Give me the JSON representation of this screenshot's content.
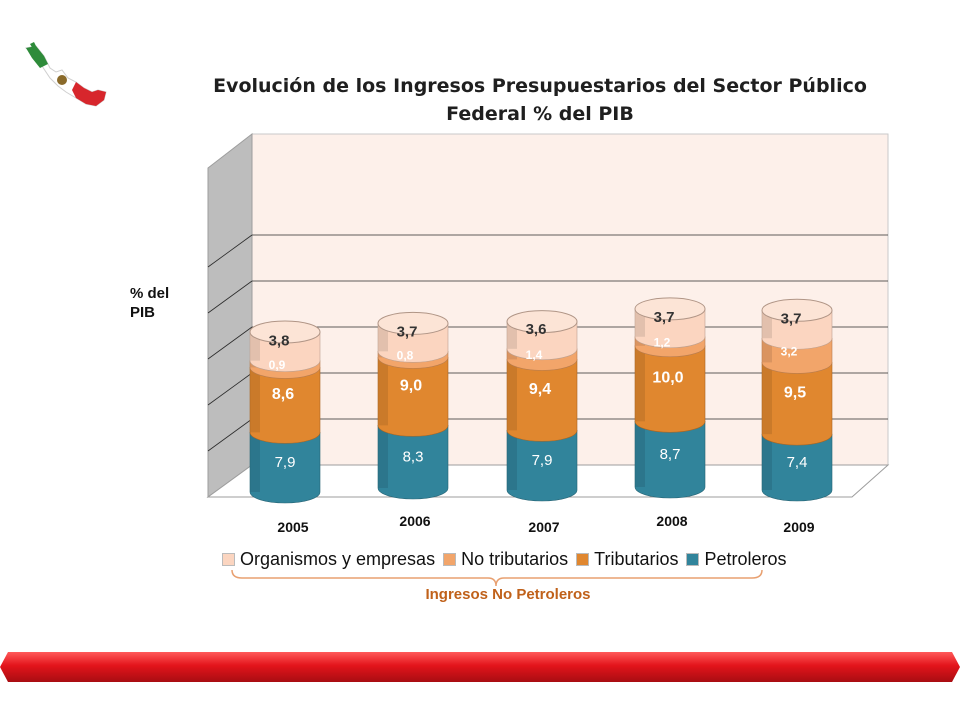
{
  "chart_data": {
    "type": "bar",
    "stacked": true,
    "title_lines": [
      "Evolución de los Ingresos Presupuestarios del Sector Público",
      "Federal % del PIB"
    ],
    "ylabel_lines": [
      "% del",
      "PIB"
    ],
    "categories": [
      "2005",
      "2006",
      "2007",
      "2008",
      "2009"
    ],
    "series": [
      {
        "name": "Petroleros",
        "color": "#31849b",
        "values": [
          7.9,
          8.3,
          7.9,
          8.7,
          7.4
        ],
        "labels": [
          "7,9",
          "8,3",
          "7,9",
          "8,7",
          "7,4"
        ]
      },
      {
        "name": "Tributarios",
        "color": "#e0872f",
        "values": [
          8.6,
          9.0,
          9.4,
          10.0,
          9.5
        ],
        "labels": [
          "8,6",
          "9,0",
          "9,4",
          "10,0",
          "9,5"
        ]
      },
      {
        "name": "No tributarios",
        "color": "#f2a56a",
        "values": [
          0.9,
          0.8,
          1.4,
          1.2,
          3.2
        ],
        "labels": [
          "0,9",
          "0,8",
          "1,4",
          "1,2",
          "3,2"
        ]
      },
      {
        "name": "Organismos y empresas",
        "color": "#fbd5c0",
        "values": [
          3.8,
          3.7,
          3.6,
          3.7,
          3.7
        ],
        "labels": [
          "3,8",
          "3,7",
          "3,6",
          "3,7",
          "3,7"
        ]
      }
    ],
    "legend_order": [
      "Organismos y empresas",
      "No tributarios",
      "Tributarios",
      "Petroleros"
    ],
    "legend_placement": "bottom",
    "grid": true,
    "plot_background": "#fdf0ea"
  },
  "annotation": {
    "bracket_label": "Ingresos No Petroleros",
    "bracket_color": "#e8a070"
  },
  "decor": {
    "flag_icon": "mexico-map-flag-icon",
    "band_color": "#e3141b"
  }
}
